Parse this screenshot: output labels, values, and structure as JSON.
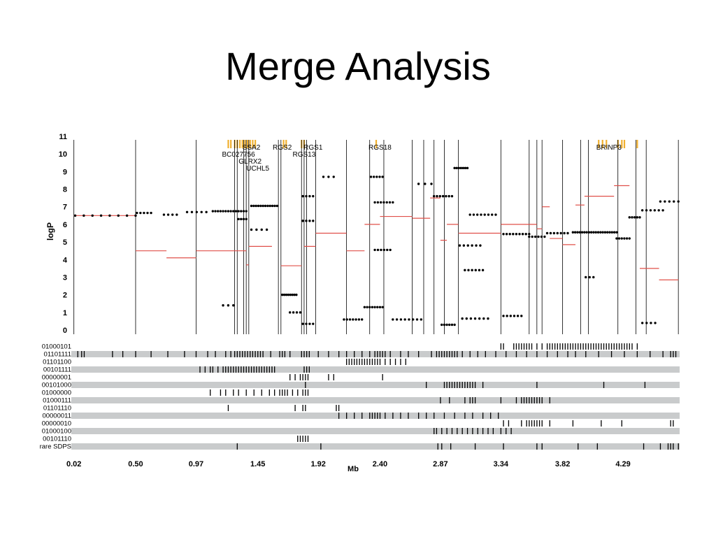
{
  "slide": {
    "title": "Merge Analysis"
  },
  "chart_data": {
    "type": "scatter",
    "ylabel": "logP",
    "xlabel": "Mb",
    "ylim": [
      0,
      11
    ],
    "xlim": [
      0.0,
      4.73
    ],
    "y_ticks": [
      "0",
      "1",
      "2",
      "3",
      "4",
      "5",
      "6",
      "7",
      "8",
      "9",
      "10",
      "11"
    ],
    "x_ticks": [
      {
        "label": "0.02",
        "v": 0.02
      },
      {
        "label": "0.50",
        "v": 0.5
      },
      {
        "label": "0.97",
        "v": 0.97
      },
      {
        "label": "1.45",
        "v": 1.45
      },
      {
        "label": "1.92",
        "v": 1.92
      },
      {
        "label": "2.40",
        "v": 2.4
      },
      {
        "label": "2.87",
        "v": 2.87
      },
      {
        "label": "3.34",
        "v": 3.34
      },
      {
        "label": "3.82",
        "v": 3.82
      },
      {
        "label": "4.29",
        "v": 4.29
      }
    ],
    "gene_labels": [
      {
        "text": "SSA2",
        "x": 1.4,
        "y": 10.25
      },
      {
        "text": "BC027756",
        "x": 1.3,
        "y": 9.85
      },
      {
        "text": "GLRX2",
        "x": 1.39,
        "y": 9.45
      },
      {
        "text": "UCHL5",
        "x": 1.45,
        "y": 9.05
      },
      {
        "text": "RGS2",
        "x": 1.64,
        "y": 10.25
      },
      {
        "text": "RGS1",
        "x": 1.88,
        "y": 10.25
      },
      {
        "text": "RGS13",
        "x": 1.81,
        "y": 9.85
      },
      {
        "text": "RGS18",
        "x": 2.4,
        "y": 10.25
      },
      {
        "text": "BRINP3",
        "x": 4.18,
        "y": 10.25
      }
    ],
    "gene_marks": [
      1.22,
      1.24,
      1.27,
      1.29,
      1.31,
      1.33,
      1.35,
      1.37,
      1.39,
      1.41,
      1.43,
      1.65,
      1.67,
      1.79,
      1.81,
      2.37,
      4.1,
      4.13,
      4.16,
      4.25,
      4.28,
      4.3,
      4.4
    ],
    "boundaries": [
      0.02,
      0.5,
      0.97,
      1.27,
      1.29,
      1.34,
      1.36,
      1.38,
      1.61,
      1.63,
      1.79,
      1.81,
      1.83,
      1.9,
      2.14,
      2.32,
      2.43,
      2.65,
      2.74,
      2.82,
      2.9,
      3.01,
      3.34,
      3.56,
      3.62,
      3.66,
      3.82,
      3.96,
      4.02,
      4.25,
      4.39,
      4.47,
      4.72
    ],
    "segments": [
      {
        "x0": 0.02,
        "x1": 0.5,
        "y": 6.5
      },
      {
        "x0": 0.5,
        "x1": 0.74,
        "y": 4.5
      },
      {
        "x0": 0.74,
        "x1": 0.97,
        "y": 4.1
      },
      {
        "x0": 0.97,
        "x1": 1.27,
        "y": 4.5
      },
      {
        "x0": 1.27,
        "x1": 1.36,
        "y": 4.5
      },
      {
        "x0": 1.36,
        "x1": 1.38,
        "y": 3.7
      },
      {
        "x0": 1.38,
        "x1": 1.56,
        "y": 4.75
      },
      {
        "x0": 1.63,
        "x1": 1.79,
        "y": 3.65
      },
      {
        "x0": 1.81,
        "x1": 1.9,
        "y": 4.75
      },
      {
        "x0": 1.9,
        "x1": 2.14,
        "y": 5.5
      },
      {
        "x0": 2.14,
        "x1": 2.28,
        "y": 4.5
      },
      {
        "x0": 2.28,
        "x1": 2.4,
        "y": 6.0
      },
      {
        "x0": 2.4,
        "x1": 2.65,
        "y": 6.45
      },
      {
        "x0": 2.65,
        "x1": 2.79,
        "y": 6.35
      },
      {
        "x0": 2.79,
        "x1": 2.87,
        "y": 7.5
      },
      {
        "x0": 2.87,
        "x1": 2.92,
        "y": 5.1
      },
      {
        "x0": 2.92,
        "x1": 3.01,
        "y": 6.0
      },
      {
        "x0": 3.01,
        "x1": 3.34,
        "y": 5.5
      },
      {
        "x0": 3.34,
        "x1": 3.62,
        "y": 6.0
      },
      {
        "x0": 3.62,
        "x1": 3.66,
        "y": 5.75
      },
      {
        "x0": 3.66,
        "x1": 3.72,
        "y": 7.0
      },
      {
        "x0": 3.72,
        "x1": 3.82,
        "y": 5.2
      },
      {
        "x0": 3.82,
        "x1": 3.92,
        "y": 4.85
      },
      {
        "x0": 3.92,
        "x1": 3.99,
        "y": 7.1
      },
      {
        "x0": 3.99,
        "x1": 4.22,
        "y": 7.6
      },
      {
        "x0": 4.22,
        "x1": 4.34,
        "y": 8.2
      },
      {
        "x0": 4.42,
        "x1": 4.57,
        "y": 3.5
      },
      {
        "x0": 4.57,
        "x1": 4.72,
        "y": 2.85
      }
    ],
    "dot_runs": [
      {
        "x0": 0.03,
        "x1": 0.5,
        "y": 6.5,
        "n": 8
      },
      {
        "x0": 0.51,
        "x1": 0.62,
        "y": 6.65,
        "n": 5
      },
      {
        "x0": 0.72,
        "x1": 0.82,
        "y": 6.55,
        "n": 4
      },
      {
        "x0": 0.9,
        "x1": 1.05,
        "y": 6.7,
        "n": 5
      },
      {
        "x0": 1.1,
        "x1": 1.36,
        "y": 6.75,
        "n": 14
      },
      {
        "x0": 1.3,
        "x1": 1.36,
        "y": 6.3,
        "n": 4
      },
      {
        "x0": 1.4,
        "x1": 1.6,
        "y": 7.05,
        "n": 12
      },
      {
        "x0": 1.4,
        "x1": 1.52,
        "y": 5.7,
        "n": 4
      },
      {
        "x0": 1.64,
        "x1": 1.75,
        "y": 2.0,
        "n": 8
      },
      {
        "x0": 1.7,
        "x1": 1.78,
        "y": 1.0,
        "n": 4
      },
      {
        "x0": 1.8,
        "x1": 1.88,
        "y": 6.2,
        "n": 4
      },
      {
        "x0": 1.8,
        "x1": 1.88,
        "y": 7.6,
        "n": 4
      },
      {
        "x0": 1.8,
        "x1": 1.88,
        "y": 0.35,
        "n": 4
      },
      {
        "x0": 2.12,
        "x1": 2.26,
        "y": 0.6,
        "n": 7
      },
      {
        "x0": 2.28,
        "x1": 2.42,
        "y": 1.3,
        "n": 8
      },
      {
        "x0": 2.33,
        "x1": 2.42,
        "y": 8.7,
        "n": 5
      },
      {
        "x0": 2.36,
        "x1": 2.5,
        "y": 7.25,
        "n": 7
      },
      {
        "x0": 2.36,
        "x1": 2.48,
        "y": 4.55,
        "n": 6
      },
      {
        "x0": 2.5,
        "x1": 2.72,
        "y": 0.6,
        "n": 8
      },
      {
        "x0": 2.82,
        "x1": 2.96,
        "y": 7.6,
        "n": 7
      },
      {
        "x0": 2.88,
        "x1": 2.98,
        "y": 0.3,
        "n": 6
      },
      {
        "x0": 2.98,
        "x1": 3.08,
        "y": 9.2,
        "n": 7
      },
      {
        "x0": 3.02,
        "x1": 3.18,
        "y": 4.8,
        "n": 6
      },
      {
        "x0": 3.06,
        "x1": 3.2,
        "y": 3.4,
        "n": 6
      },
      {
        "x0": 3.1,
        "x1": 3.3,
        "y": 6.55,
        "n": 8
      },
      {
        "x0": 3.04,
        "x1": 3.24,
        "y": 0.65,
        "n": 7
      },
      {
        "x0": 3.36,
        "x1": 3.5,
        "y": 0.8,
        "n": 6
      },
      {
        "x0": 3.36,
        "x1": 3.56,
        "y": 5.45,
        "n": 9
      },
      {
        "x0": 3.56,
        "x1": 3.68,
        "y": 5.3,
        "n": 6
      },
      {
        "x0": 3.7,
        "x1": 3.86,
        "y": 5.5,
        "n": 7
      },
      {
        "x0": 3.9,
        "x1": 4.24,
        "y": 5.55,
        "n": 20
      },
      {
        "x0": 4.24,
        "x1": 4.34,
        "y": 5.2,
        "n": 6
      },
      {
        "x0": 4.34,
        "x1": 4.42,
        "y": 6.4,
        "n": 5
      },
      {
        "x0": 4.58,
        "x1": 4.72,
        "y": 7.3,
        "n": 5
      },
      {
        "x0": 4.44,
        "x1": 4.6,
        "y": 6.8,
        "n": 6
      },
      {
        "x0": 4.44,
        "x1": 4.54,
        "y": 0.4,
        "n": 4
      },
      {
        "x0": 1.18,
        "x1": 1.26,
        "y": 1.4,
        "n": 3
      },
      {
        "x0": 1.96,
        "x1": 2.04,
        "y": 8.7,
        "n": 3
      },
      {
        "x0": 2.7,
        "x1": 2.8,
        "y": 8.3,
        "n": 3
      },
      {
        "x0": 4.0,
        "x1": 4.06,
        "y": 3.0,
        "n": 3
      }
    ],
    "tracks": [
      {
        "name": "01000101",
        "ticks": [
          3.34,
          3.36,
          3.44,
          3.46,
          3.48,
          3.5,
          3.52,
          3.54,
          3.56,
          3.58,
          3.62,
          3.66,
          3.7,
          3.72,
          3.74,
          3.76,
          3.78,
          3.8,
          3.82,
          3.84,
          3.86,
          3.88,
          3.9,
          3.92,
          3.94,
          3.96,
          3.98,
          4.0,
          4.02,
          4.04,
          4.06,
          4.08,
          4.1,
          4.12,
          4.14,
          4.16,
          4.18,
          4.2,
          4.22,
          4.24,
          4.26,
          4.28,
          4.3,
          4.32,
          4.34,
          4.36,
          4.4
        ]
      },
      {
        "name": "01101111",
        "ticks": [
          0.05,
          0.08,
          0.1,
          0.32,
          0.4,
          0.5,
          0.62,
          0.75,
          0.88,
          0.97,
          1.06,
          1.12,
          1.2,
          1.24,
          1.27,
          1.29,
          1.31,
          1.33,
          1.35,
          1.37,
          1.39,
          1.41,
          1.43,
          1.45,
          1.47,
          1.49,
          1.55,
          1.62,
          1.64,
          1.66,
          1.7,
          1.79,
          1.81,
          1.83,
          1.85,
          1.92,
          2.0,
          2.08,
          2.14,
          2.2,
          2.26,
          2.32,
          2.36,
          2.38,
          2.4,
          2.42,
          2.44,
          2.48,
          2.56,
          2.62,
          2.7,
          2.8,
          2.84,
          2.86,
          2.88,
          2.9,
          2.92,
          2.94,
          2.96,
          2.98,
          3.0,
          3.04,
          3.1,
          3.16,
          3.22,
          3.3,
          3.38,
          3.46,
          3.54,
          3.62,
          3.7,
          3.78,
          3.86,
          3.92,
          4.0,
          4.1,
          4.2,
          4.3,
          4.4,
          4.5,
          4.6,
          4.66,
          4.68,
          4.7
        ]
      },
      {
        "name": "01101100",
        "ticks": [
          2.14,
          2.16,
          2.18,
          2.2,
          2.22,
          2.24,
          2.26,
          2.28,
          2.3,
          2.32,
          2.34,
          2.36,
          2.38,
          2.4,
          2.44,
          2.48,
          2.52,
          2.56,
          2.6
        ]
      },
      {
        "name": "00101111",
        "ticks": [
          1.0,
          1.04,
          1.08,
          1.1,
          1.14,
          1.18,
          1.2,
          1.22,
          1.24,
          1.26,
          1.28,
          1.3,
          1.32,
          1.34,
          1.36,
          1.38,
          1.4,
          1.42,
          1.44,
          1.46,
          1.48,
          1.5,
          1.52,
          1.54,
          1.56,
          1.58,
          1.81,
          1.83,
          1.85
        ]
      },
      {
        "name": "00000001",
        "ticks": [
          1.7,
          1.74,
          1.78,
          1.8,
          1.82,
          1.84,
          2.0,
          2.04,
          2.42
        ]
      },
      {
        "name": "00101000",
        "ticks": [
          1.82,
          2.76,
          2.9,
          2.92,
          2.94,
          2.96,
          2.98,
          3.0,
          3.02,
          3.04,
          3.06,
          3.08,
          3.1,
          3.12,
          3.14,
          3.2,
          3.62,
          4.14,
          4.46
        ]
      },
      {
        "name": "01000000",
        "ticks": [
          1.08,
          1.16,
          1.2,
          1.26,
          1.3,
          1.36,
          1.42,
          1.48,
          1.54,
          1.58,
          1.62,
          1.64,
          1.66,
          1.68,
          1.72,
          1.76,
          1.8,
          1.82,
          1.84
        ]
      },
      {
        "name": "01000111",
        "ticks": [
          2.87,
          2.94,
          3.06,
          3.1,
          3.12,
          3.14,
          3.34,
          3.46,
          3.5,
          3.52,
          3.54,
          3.56,
          3.58,
          3.6,
          3.62,
          3.64,
          3.66,
          3.72
        ]
      },
      {
        "name": "01101110",
        "ticks": [
          1.22,
          1.74,
          1.8,
          1.82,
          2.06,
          2.08
        ]
      },
      {
        "name": "00000011",
        "ticks": [
          2.08,
          2.14,
          2.2,
          2.26,
          2.32,
          2.34,
          2.36,
          2.38,
          2.4,
          2.44,
          2.5,
          2.56,
          2.62,
          2.7,
          2.76,
          2.82,
          2.9,
          2.98,
          3.06,
          3.12,
          3.2,
          3.26,
          3.32
        ]
      },
      {
        "name": "00000010",
        "ticks": [
          3.36,
          3.4,
          3.5,
          3.54,
          3.56,
          3.58,
          3.6,
          3.62,
          3.64,
          3.66,
          3.72,
          3.9,
          4.12,
          4.28,
          4.66,
          4.68
        ]
      },
      {
        "name": "01000100",
        "ticks": [
          2.82,
          2.84,
          2.88,
          2.92,
          2.96,
          3.0,
          3.04,
          3.08,
          3.12,
          3.16,
          3.2,
          3.24,
          3.28,
          3.34,
          3.38,
          3.42
        ]
      },
      {
        "name": "00101110",
        "ticks": [
          1.76,
          1.78,
          1.8,
          1.82,
          1.84
        ]
      },
      {
        "name": "rare SDPS",
        "ticks": [
          1.29,
          1.94,
          2.85,
          2.88,
          2.95,
          3.14,
          3.36,
          3.62,
          3.66,
          3.94,
          4.09,
          4.45,
          4.58,
          4.64,
          4.66,
          4.68,
          4.72
        ]
      }
    ],
    "colors": {
      "segment": "#e0504a",
      "dot": "#000000",
      "track": "#c9cbcc",
      "gene": "#f0b030",
      "line": "#000000"
    }
  }
}
